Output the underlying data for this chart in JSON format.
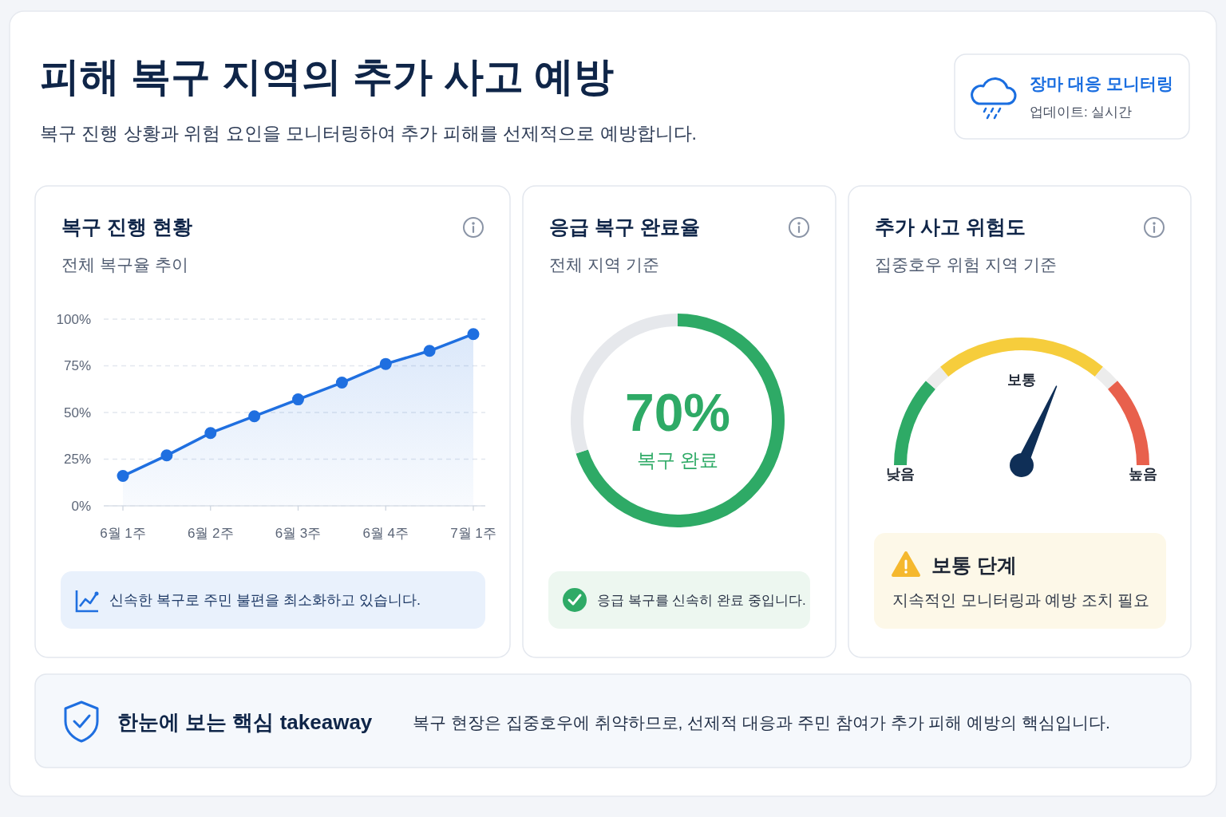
{
  "chart_data": [
    {
      "type": "other",
      "title": "피해 복구 지역의 추가 사고 예방",
      "subtitle": "복구 진행 상황과 위험 요인을 모니터링하여 추가 피해를 선제적으로 예방합니다.",
      "annotations": [
        "장마 대응 모니터링",
        "업데이트: 실시간"
      ]
    },
    {
      "type": "area",
      "title": "복구 진행 현황",
      "subtitle": "전체 복구율 추이",
      "categories": [
        "6월 1주",
        null,
        "6월 2주",
        null,
        "6월 3주",
        null,
        "6월 4주",
        null,
        "7월 1주"
      ],
      "series": [
        {
          "color": "#1f6fe0",
          "values": [
            16,
            27,
            39,
            48,
            57,
            66,
            76,
            83,
            92
          ]
        }
      ],
      "ylim": [
        0,
        100
      ],
      "yticks": [
        {
          "value": 0,
          "label": "0%"
        },
        {
          "value": 25,
          "label": "25%"
        },
        {
          "value": 50,
          "label": "50%"
        },
        {
          "value": 75,
          "label": "75%"
        },
        {
          "value": 100,
          "label": "100%"
        }
      ],
      "grid": "y",
      "marker": "circle",
      "annotations": [
        "신속한 복구로 주민 불편을 최소화하고 있습니다."
      ]
    },
    {
      "type": "donut",
      "title": "응급 복구 완료율",
      "subtitle": "전체 지역 기준",
      "categories": [
        "복구 완료",
        null
      ],
      "values": [
        70,
        30
      ],
      "colors": [
        "#2eaa66",
        "#e6e8ec"
      ],
      "value_labels": [
        "70%",
        null
      ],
      "annotations": [
        "응급 복구를 신속히 완료 중입니다."
      ]
    },
    {
      "type": "donut",
      "title": "추가 사고 위험도",
      "subtitle": "집중호우 위험 지역 기준",
      "categories": [
        "낮음",
        null,
        "보통",
        null,
        "높음"
      ],
      "values": [
        23,
        5,
        44,
        5,
        23
      ],
      "colors": [
        "#2eaa66",
        "#ececec",
        "#f6cd3c",
        "#ececec",
        "#e8604c"
      ],
      "needle": "보통",
      "annotations": [
        "보통 단계",
        "지속적인 모니터링과 예방 조치 필요"
      ]
    },
    {
      "type": "other",
      "title": "한눈에 보는 핵심 takeaway",
      "annotations": [
        "복구 현장은 집중호우에 취약하므로, 선제적 대응과 주민 참여가 추가 피해 예방의 핵심입니다."
      ]
    }
  ]
}
